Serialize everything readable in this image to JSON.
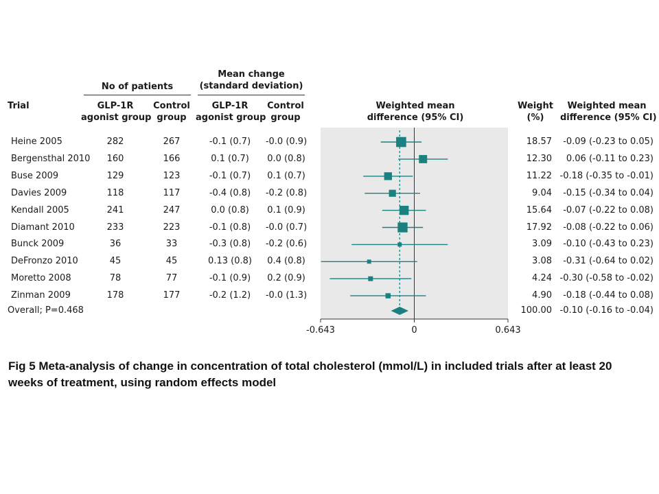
{
  "headers": {
    "trial": "Trial",
    "no_patients": "No of patients",
    "mean_change_line1": "Mean change",
    "mean_change_line2": "(standard deviation)",
    "glp1r_line1": "GLP-1R",
    "glp1r_line2": "agonist group",
    "control_line1": "Control",
    "control_line2": "group",
    "wmd_line1": "Weighted mean",
    "wmd_line2": "difference (95% CI)",
    "weight_line1": "Weight",
    "weight_line2": "(%)",
    "wmd_ci_line1": "Weighted mean",
    "wmd_ci_line2": "difference (95% CI)"
  },
  "overall": {
    "label": "Overall; P=0.468",
    "weight": "100.00",
    "ci_text": "-0.10 (-0.16 to -0.04)"
  },
  "caption": "Fig 5 Meta-analysis of change in concentration of total cholesterol (mmol/L) in included trials after at least 20 weeks of treatment, using random effects model",
  "colors": {
    "marker": "#1a8080",
    "plot_background": "#e9e9e9",
    "axis": "#333333"
  },
  "chart_data": {
    "type": "forest",
    "xlim": [
      -0.643,
      0.643
    ],
    "x_ticks": [
      "-0.643",
      "0",
      "0.643"
    ],
    "x_tick_values": [
      -0.643,
      0,
      0.643
    ],
    "pooled_estimate": -0.1,
    "studies": [
      {
        "trial": "Heine 2005",
        "n_glp": "282",
        "n_ctrl": "267",
        "mean_glp": "-0.1 (0.7)",
        "mean_ctrl": "-0.0 (0.9)",
        "weight": "18.57",
        "ci_text": "-0.09 (-0.23 to 0.05)",
        "est": -0.09,
        "lo": -0.23,
        "hi": 0.05,
        "w": 18.57
      },
      {
        "trial": "Bergensthal 2010",
        "n_glp": "160",
        "n_ctrl": "166",
        "mean_glp": "0.1 (0.7)",
        "mean_ctrl": "0.0 (0.8)",
        "weight": "12.30",
        "ci_text": "0.06 (-0.11 to 0.23)",
        "est": 0.06,
        "lo": -0.11,
        "hi": 0.23,
        "w": 12.3
      },
      {
        "trial": "Buse 2009",
        "n_glp": "129",
        "n_ctrl": "123",
        "mean_glp": "-0.1 (0.7)",
        "mean_ctrl": "0.1 (0.7)",
        "weight": "11.22",
        "ci_text": "-0.18 (-0.35 to -0.01)",
        "est": -0.18,
        "lo": -0.35,
        "hi": -0.01,
        "w": 11.22
      },
      {
        "trial": "Davies 2009",
        "n_glp": "118",
        "n_ctrl": "117",
        "mean_glp": "-0.4 (0.8)",
        "mean_ctrl": "-0.2 (0.8)",
        "weight": "9.04",
        "ci_text": "-0.15 (-0.34 to 0.04)",
        "est": -0.15,
        "lo": -0.34,
        "hi": 0.04,
        "w": 9.04
      },
      {
        "trial": "Kendall 2005",
        "n_glp": "241",
        "n_ctrl": "247",
        "mean_glp": "0.0 (0.8)",
        "mean_ctrl": "0.1 (0.9)",
        "weight": "15.64",
        "ci_text": "-0.07 (-0.22 to 0.08)",
        "est": -0.07,
        "lo": -0.22,
        "hi": 0.08,
        "w": 15.64
      },
      {
        "trial": "Diamant 2010",
        "n_glp": "233",
        "n_ctrl": "223",
        "mean_glp": "-0.1 (0.8)",
        "mean_ctrl": "-0.0 (0.7)",
        "weight": "17.92",
        "ci_text": "-0.08 (-0.22 to 0.06)",
        "est": -0.08,
        "lo": -0.22,
        "hi": 0.06,
        "w": 17.92
      },
      {
        "trial": "Bunck 2009",
        "n_glp": "36",
        "n_ctrl": "33",
        "mean_glp": "-0.3 (0.8)",
        "mean_ctrl": "-0.2 (0.6)",
        "weight": "3.09",
        "ci_text": "-0.10 (-0.43 to 0.23)",
        "est": -0.1,
        "lo": -0.43,
        "hi": 0.23,
        "w": 3.09
      },
      {
        "trial": "DeFronzo 2010",
        "n_glp": "45",
        "n_ctrl": "45",
        "mean_glp": "0.13 (0.8)",
        "mean_ctrl": "0.4 (0.8)",
        "weight": "3.08",
        "ci_text": "-0.31 (-0.64 to 0.02)",
        "est": -0.31,
        "lo": -0.64,
        "hi": 0.02,
        "w": 3.08
      },
      {
        "trial": "Moretto 2008",
        "n_glp": "78",
        "n_ctrl": "77",
        "mean_glp": "-0.1 (0.9)",
        "mean_ctrl": "0.2 (0.9)",
        "weight": "4.24",
        "ci_text": "-0.30 (-0.58 to -0.02)",
        "est": -0.3,
        "lo": -0.58,
        "hi": -0.02,
        "w": 4.24
      },
      {
        "trial": "Zinman 2009",
        "n_glp": "178",
        "n_ctrl": "177",
        "mean_glp": "-0.2 (1.2)",
        "mean_ctrl": "-0.0 (1.3)",
        "weight": "4.90",
        "ci_text": "-0.18 (-0.44 to 0.08)",
        "est": -0.18,
        "lo": -0.44,
        "hi": 0.08,
        "w": 4.9
      }
    ],
    "overall": {
      "est": -0.1,
      "lo": -0.16,
      "hi": -0.04
    }
  }
}
